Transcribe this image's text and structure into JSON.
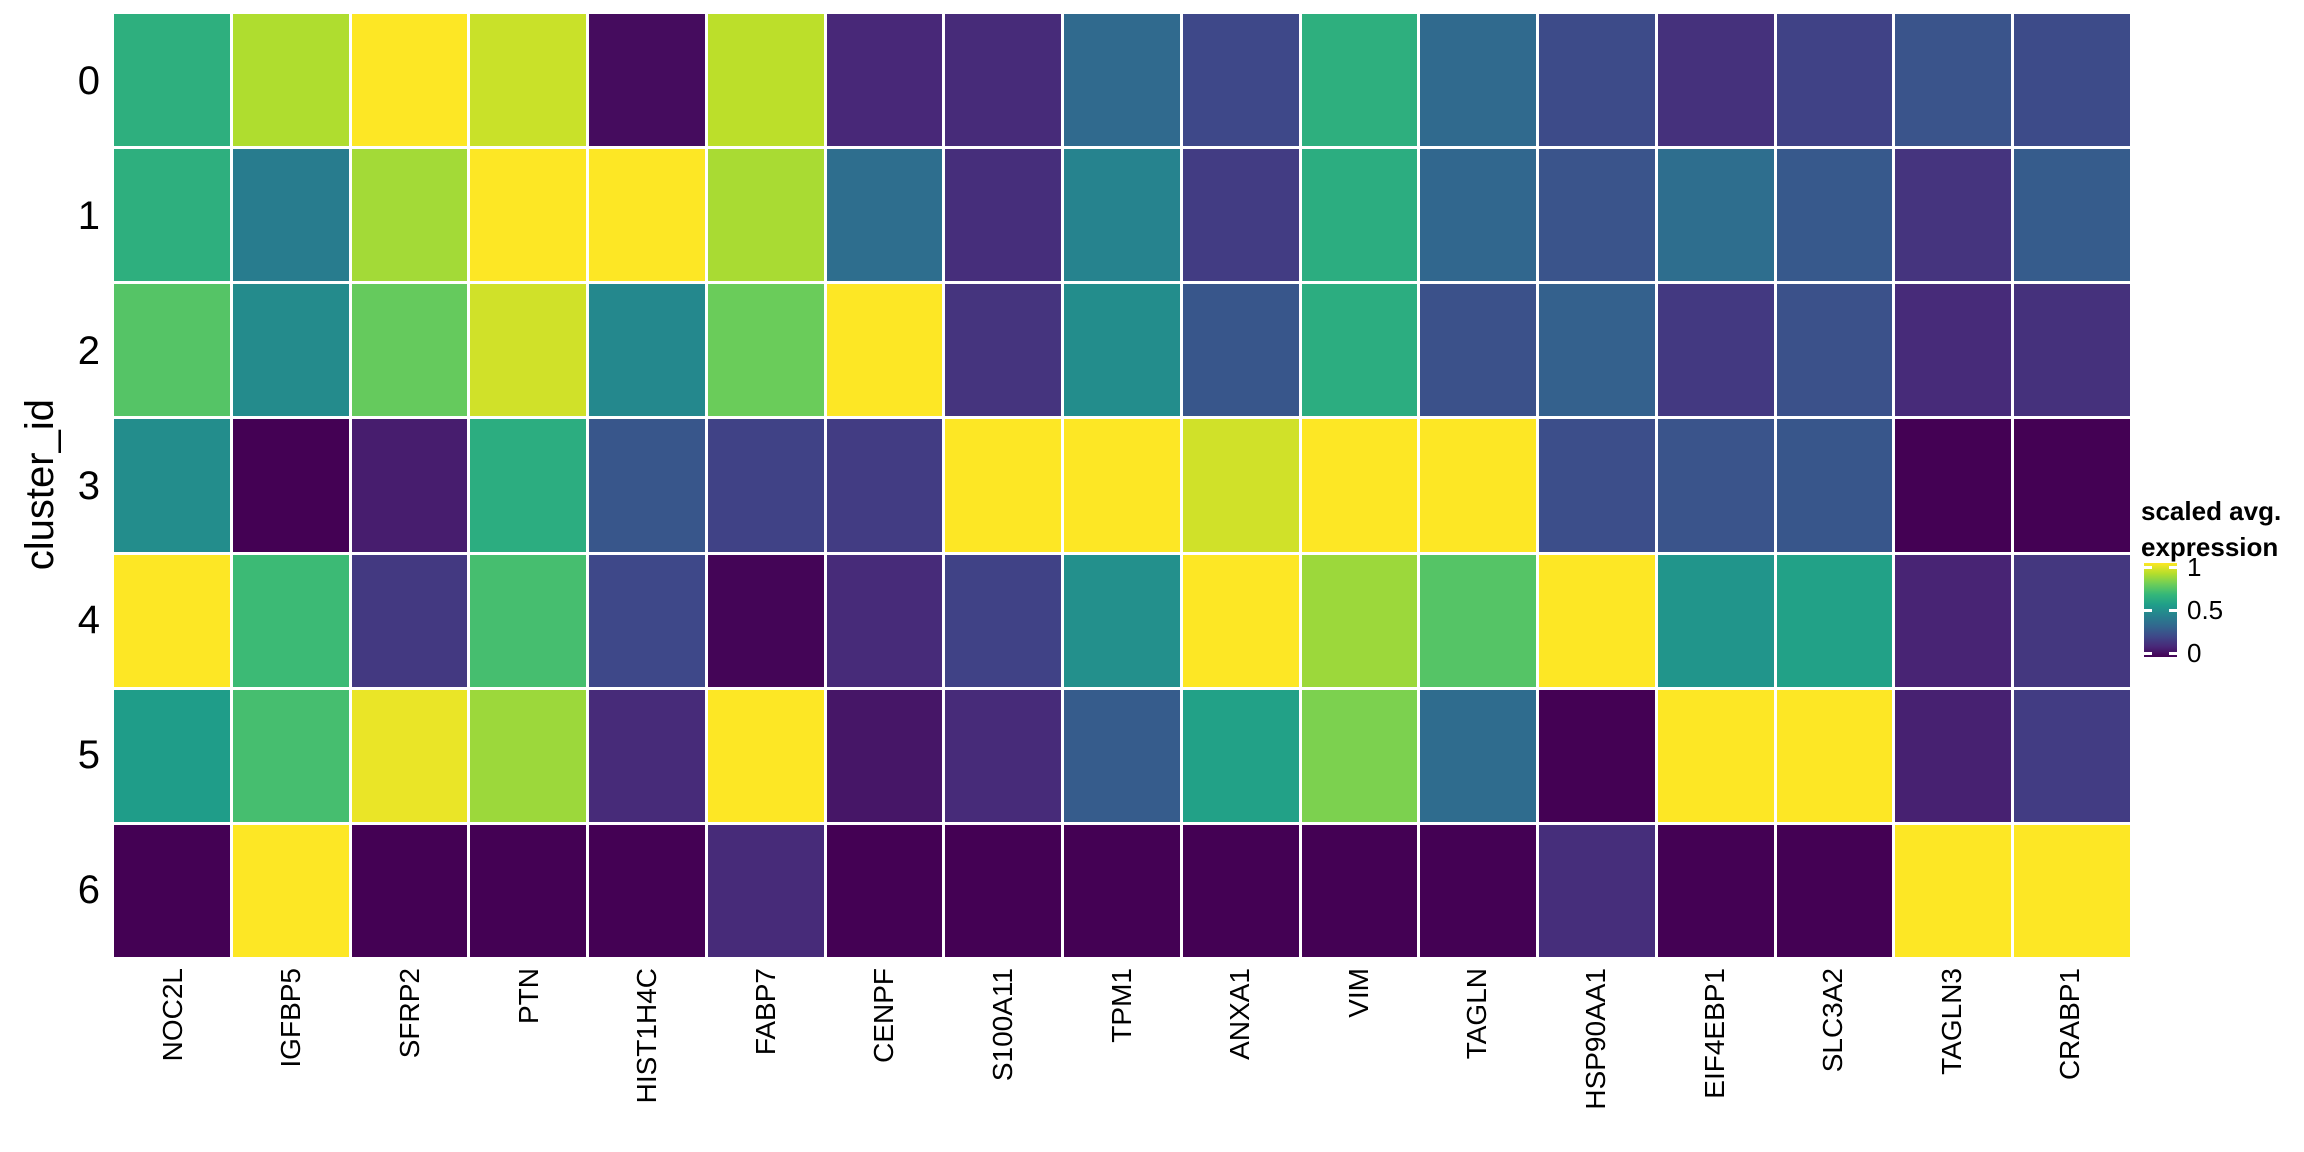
{
  "chart_data": {
    "type": "heatmap",
    "title": "",
    "xlabel": "",
    "ylabel": "cluster_id",
    "columns": [
      "NOC2L",
      "IGFBP5",
      "SFRP2",
      "PTN",
      "HIST1H4C",
      "FABP7",
      "CENPF",
      "S100A11",
      "TPM1",
      "ANXA1",
      "VIM",
      "TAGLN",
      "HSP90AA1",
      "EIF4EBP1",
      "SLC3A2",
      "TAGLN3",
      "CRABP1"
    ],
    "rows": [
      "0",
      "1",
      "2",
      "3",
      "4",
      "5",
      "6"
    ],
    "values": [
      [
        0.63,
        0.88,
        1.0,
        0.92,
        0.03,
        0.9,
        0.11,
        0.12,
        0.34,
        0.22,
        0.63,
        0.34,
        0.23,
        0.14,
        0.2,
        0.26,
        0.23
      ],
      [
        0.63,
        0.42,
        0.86,
        1.0,
        1.0,
        0.87,
        0.36,
        0.13,
        0.45,
        0.18,
        0.62,
        0.33,
        0.26,
        0.36,
        0.28,
        0.15,
        0.29
      ],
      [
        0.73,
        0.48,
        0.76,
        0.93,
        0.47,
        0.77,
        1.0,
        0.15,
        0.49,
        0.27,
        0.62,
        0.25,
        0.31,
        0.17,
        0.25,
        0.12,
        0.14
      ],
      [
        0.49,
        0.0,
        0.08,
        0.62,
        0.27,
        0.2,
        0.18,
        1.0,
        1.0,
        0.93,
        1.0,
        1.0,
        0.24,
        0.26,
        0.27,
        0.0,
        0.0
      ],
      [
        1.0,
        0.68,
        0.17,
        0.7,
        0.22,
        0.01,
        0.12,
        0.2,
        0.5,
        1.0,
        0.85,
        0.73,
        1.0,
        0.52,
        0.57,
        0.1,
        0.16
      ],
      [
        0.55,
        0.7,
        0.97,
        0.85,
        0.12,
        1.0,
        0.06,
        0.12,
        0.29,
        0.57,
        0.8,
        0.35,
        0.0,
        1.0,
        1.0,
        0.09,
        0.18
      ],
      [
        0.0,
        1.0,
        0.0,
        0.0,
        0.0,
        0.12,
        0.0,
        0.0,
        0.0,
        0.0,
        0.0,
        0.0,
        0.13,
        0.0,
        0.0,
        1.0,
        1.0
      ]
    ],
    "value_range": [
      0,
      1
    ],
    "grid": false,
    "legend": {
      "position": "right",
      "title_lines": [
        "scaled avg.",
        "expression"
      ],
      "ticks": [
        {
          "label": "1",
          "value": 1
        },
        {
          "label": "0.5",
          "value": 0.5
        },
        {
          "label": "0",
          "value": 0
        }
      ]
    },
    "colorscale": {
      "name": "viridis",
      "stops": [
        "#440154",
        "#482878",
        "#3e4989",
        "#31688e",
        "#26828e",
        "#1f9e89",
        "#35b779",
        "#6ece58",
        "#b5de2b",
        "#fde725"
      ]
    }
  },
  "colors": {
    "background": "#ffffff",
    "cell_border": "#ffffff",
    "text": "#000000"
  }
}
